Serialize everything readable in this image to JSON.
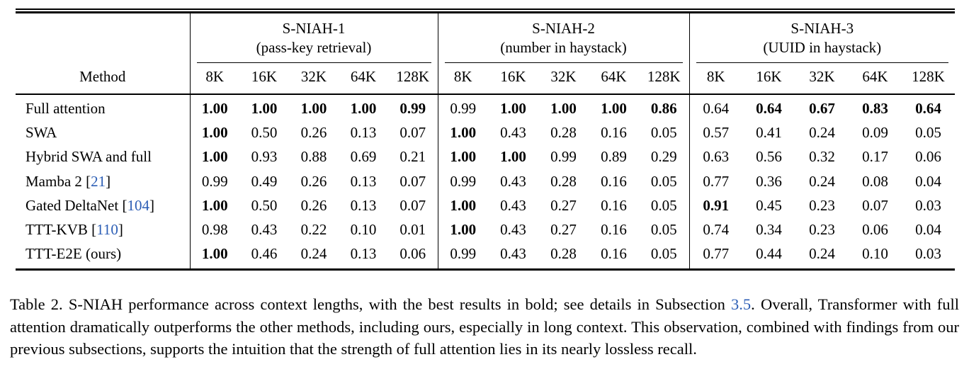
{
  "colors": {
    "text": "#000000",
    "background": "#ffffff",
    "link": "#2c5eb5",
    "rule": "#000000"
  },
  "table": {
    "method_header": "Method",
    "context_lengths": [
      "8K",
      "16K",
      "32K",
      "64K",
      "128K"
    ],
    "groups": [
      {
        "title": "S-NIAH-1",
        "subtitle": "(pass-key retrieval)"
      },
      {
        "title": "S-NIAH-2",
        "subtitle": "(number in haystack)"
      },
      {
        "title": "S-NIAH-3",
        "subtitle": "(UUID in haystack)"
      }
    ],
    "rows": [
      {
        "method": "Full attention",
        "citation": null,
        "cells": [
          {
            "v": "1.00",
            "b": true
          },
          {
            "v": "1.00",
            "b": true
          },
          {
            "v": "1.00",
            "b": true
          },
          {
            "v": "1.00",
            "b": true
          },
          {
            "v": "0.99",
            "b": true
          },
          {
            "v": "0.99",
            "b": false
          },
          {
            "v": "1.00",
            "b": true
          },
          {
            "v": "1.00",
            "b": true
          },
          {
            "v": "1.00",
            "b": true
          },
          {
            "v": "0.86",
            "b": true
          },
          {
            "v": "0.64",
            "b": false
          },
          {
            "v": "0.64",
            "b": true
          },
          {
            "v": "0.67",
            "b": true
          },
          {
            "v": "0.83",
            "b": true
          },
          {
            "v": "0.64",
            "b": true
          }
        ]
      },
      {
        "method": "SWA",
        "citation": null,
        "cells": [
          {
            "v": "1.00",
            "b": true
          },
          {
            "v": "0.50",
            "b": false
          },
          {
            "v": "0.26",
            "b": false
          },
          {
            "v": "0.13",
            "b": false
          },
          {
            "v": "0.07",
            "b": false
          },
          {
            "v": "1.00",
            "b": true
          },
          {
            "v": "0.43",
            "b": false
          },
          {
            "v": "0.28",
            "b": false
          },
          {
            "v": "0.16",
            "b": false
          },
          {
            "v": "0.05",
            "b": false
          },
          {
            "v": "0.57",
            "b": false
          },
          {
            "v": "0.41",
            "b": false
          },
          {
            "v": "0.24",
            "b": false
          },
          {
            "v": "0.09",
            "b": false
          },
          {
            "v": "0.05",
            "b": false
          }
        ]
      },
      {
        "method": "Hybrid SWA and full",
        "citation": null,
        "cells": [
          {
            "v": "1.00",
            "b": true
          },
          {
            "v": "0.93",
            "b": false
          },
          {
            "v": "0.88",
            "b": false
          },
          {
            "v": "0.69",
            "b": false
          },
          {
            "v": "0.21",
            "b": false
          },
          {
            "v": "1.00",
            "b": true
          },
          {
            "v": "1.00",
            "b": true
          },
          {
            "v": "0.99",
            "b": false
          },
          {
            "v": "0.89",
            "b": false
          },
          {
            "v": "0.29",
            "b": false
          },
          {
            "v": "0.63",
            "b": false
          },
          {
            "v": "0.56",
            "b": false
          },
          {
            "v": "0.32",
            "b": false
          },
          {
            "v": "0.17",
            "b": false
          },
          {
            "v": "0.06",
            "b": false
          }
        ]
      },
      {
        "method": "Mamba 2",
        "citation": "21",
        "cells": [
          {
            "v": "0.99",
            "b": false
          },
          {
            "v": "0.49",
            "b": false
          },
          {
            "v": "0.26",
            "b": false
          },
          {
            "v": "0.13",
            "b": false
          },
          {
            "v": "0.07",
            "b": false
          },
          {
            "v": "0.99",
            "b": false
          },
          {
            "v": "0.43",
            "b": false
          },
          {
            "v": "0.28",
            "b": false
          },
          {
            "v": "0.16",
            "b": false
          },
          {
            "v": "0.05",
            "b": false
          },
          {
            "v": "0.77",
            "b": false
          },
          {
            "v": "0.36",
            "b": false
          },
          {
            "v": "0.24",
            "b": false
          },
          {
            "v": "0.08",
            "b": false
          },
          {
            "v": "0.04",
            "b": false
          }
        ]
      },
      {
        "method": "Gated DeltaNet",
        "citation": "104",
        "cells": [
          {
            "v": "1.00",
            "b": true
          },
          {
            "v": "0.50",
            "b": false
          },
          {
            "v": "0.26",
            "b": false
          },
          {
            "v": "0.13",
            "b": false
          },
          {
            "v": "0.07",
            "b": false
          },
          {
            "v": "1.00",
            "b": true
          },
          {
            "v": "0.43",
            "b": false
          },
          {
            "v": "0.27",
            "b": false
          },
          {
            "v": "0.16",
            "b": false
          },
          {
            "v": "0.05",
            "b": false
          },
          {
            "v": "0.91",
            "b": true
          },
          {
            "v": "0.45",
            "b": false
          },
          {
            "v": "0.23",
            "b": false
          },
          {
            "v": "0.07",
            "b": false
          },
          {
            "v": "0.03",
            "b": false
          }
        ]
      },
      {
        "method": "TTT-KVB",
        "citation": "110",
        "cells": [
          {
            "v": "0.98",
            "b": false
          },
          {
            "v": "0.43",
            "b": false
          },
          {
            "v": "0.22",
            "b": false
          },
          {
            "v": "0.10",
            "b": false
          },
          {
            "v": "0.01",
            "b": false
          },
          {
            "v": "1.00",
            "b": true
          },
          {
            "v": "0.43",
            "b": false
          },
          {
            "v": "0.27",
            "b": false
          },
          {
            "v": "0.16",
            "b": false
          },
          {
            "v": "0.05",
            "b": false
          },
          {
            "v": "0.74",
            "b": false
          },
          {
            "v": "0.34",
            "b": false
          },
          {
            "v": "0.23",
            "b": false
          },
          {
            "v": "0.06",
            "b": false
          },
          {
            "v": "0.04",
            "b": false
          }
        ]
      },
      {
        "method": "TTT-E2E (ours)",
        "citation": null,
        "cells": [
          {
            "v": "1.00",
            "b": true
          },
          {
            "v": "0.46",
            "b": false
          },
          {
            "v": "0.24",
            "b": false
          },
          {
            "v": "0.13",
            "b": false
          },
          {
            "v": "0.06",
            "b": false
          },
          {
            "v": "0.99",
            "b": false
          },
          {
            "v": "0.43",
            "b": false
          },
          {
            "v": "0.28",
            "b": false
          },
          {
            "v": "0.16",
            "b": false
          },
          {
            "v": "0.05",
            "b": false
          },
          {
            "v": "0.77",
            "b": false
          },
          {
            "v": "0.44",
            "b": false
          },
          {
            "v": "0.24",
            "b": false
          },
          {
            "v": "0.10",
            "b": false
          },
          {
            "v": "0.03",
            "b": false
          }
        ]
      }
    ]
  },
  "caption": {
    "prefix": "Table 2. S-NIAH performance across context lengths, with the best results in bold; see details in Subsection ",
    "link": "3.5",
    "suffix": ". Overall, Transformer with full attention dramatically outperforms the other methods, including ours, especially in long context. This observation, combined with findings from our previous subsections, supports the intuition that the strength of full attention lies in its nearly lossless recall."
  }
}
